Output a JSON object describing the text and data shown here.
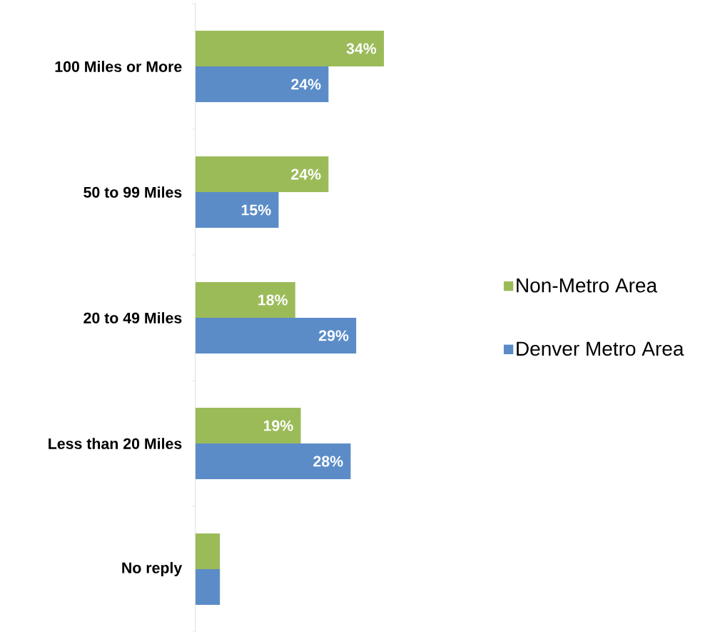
{
  "chart_data": {
    "type": "bar",
    "orientation": "horizontal",
    "categories": [
      "100 Miles or More",
      "50 to 99 Miles",
      "20 to 49 Miles",
      "Less than 20 Miles",
      "No reply"
    ],
    "series": [
      {
        "name": "Non-Metro Area",
        "color": "#9bbb59",
        "values": [
          34,
          24,
          18,
          19,
          4.4
        ],
        "value_labels": [
          "34%",
          "24%",
          "18%",
          "19%",
          null
        ]
      },
      {
        "name": "Denver Metro Area",
        "color": "#5b8cc8",
        "values": [
          24,
          15,
          29,
          28,
          4.4
        ],
        "value_labels": [
          "24%",
          "15%",
          "29%",
          "28%",
          null
        ]
      }
    ],
    "legend": "right"
  }
}
